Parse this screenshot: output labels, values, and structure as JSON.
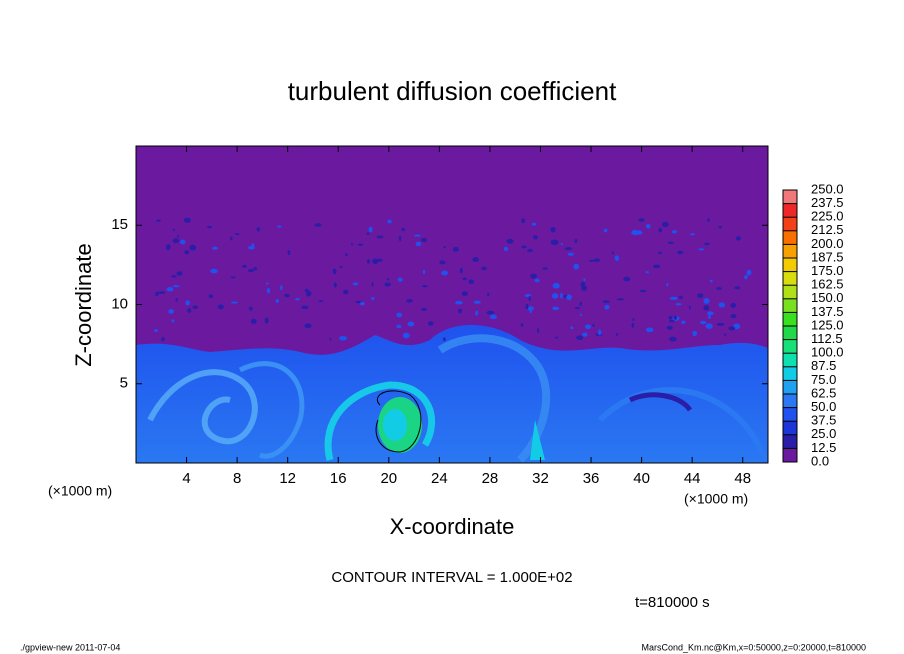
{
  "chart_data": {
    "type": "contour",
    "title": "turbulent diffusion coefficient",
    "xlabel": "X-coordinate",
    "ylabel": "Z-coordinate",
    "xunit": "(×1000 m)",
    "yunit": "(×1000 m)",
    "xlim": [
      0,
      50
    ],
    "ylim": [
      0,
      20
    ],
    "xticks": [
      4,
      8,
      12,
      16,
      20,
      24,
      28,
      32,
      36,
      40,
      44,
      48
    ],
    "yticks": [
      5,
      10,
      15
    ],
    "colorbar": {
      "ticks": [
        {
          "value": 0,
          "label": "0.0"
        },
        12.5,
        {
          "value": 25,
          "label": "25.0"
        },
        37.5,
        {
          "value": 50,
          "label": "50.0"
        },
        62.5,
        {
          "value": 75,
          "label": "75.0"
        },
        87.5,
        {
          "value": 100,
          "label": "100.0"
        },
        112.5,
        {
          "value": 125,
          "label": "125.0"
        },
        137.5,
        {
          "value": 150,
          "label": "150.0"
        },
        162.5,
        {
          "value": 175,
          "label": "175.0"
        },
        187.5,
        {
          "value": 200,
          "label": "200.0"
        },
        212.5,
        {
          "value": 225,
          "label": "225.0"
        },
        237.5,
        {
          "value": 250,
          "label": "250.0"
        }
      ],
      "colors": [
        "#6b1aa0",
        "#2a1ea8",
        "#1c36d8",
        "#1f52ee",
        "#2a78f2",
        "#1fa0f0",
        "#12cce6",
        "#10e0b0",
        "#18e078",
        "#20d848",
        "#38e020",
        "#78e020",
        "#b0e018",
        "#d8dc10",
        "#f2cc00",
        "#f8a000",
        "#f87000",
        "#f24018",
        "#ee2828",
        "#f07878"
      ]
    },
    "contour_interval": "CONTOUR INTERVAL = 1.000E+02",
    "time": "t=810000 s",
    "footer_left": "./gpview-new  2011-07-04",
    "footer_right": "MarsCond_Km.nc@Km,x=0:50000,z=0:20000,t=810000"
  }
}
